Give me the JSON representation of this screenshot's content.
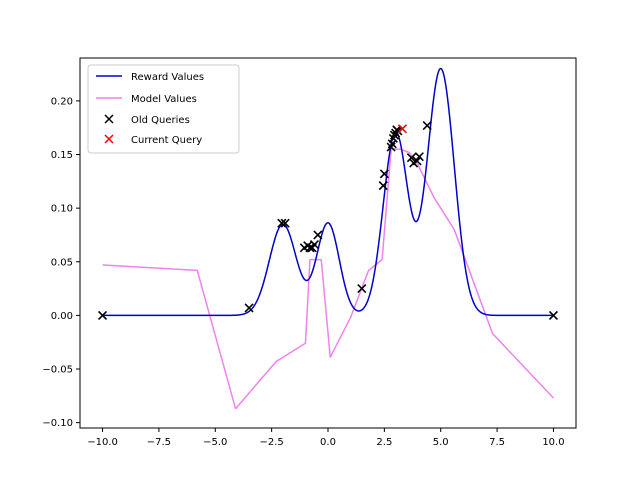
{
  "chart_data": {
    "type": "line",
    "title": "",
    "xlabel": "",
    "ylabel": "",
    "xlim": [
      -11.0,
      11.0
    ],
    "ylim": [
      -0.105,
      0.24
    ],
    "grid": false,
    "legend_placement": "top-left",
    "x_ticks": [
      -10.0,
      -7.5,
      -5.0,
      -2.5,
      0.0,
      2.5,
      5.0,
      7.5,
      10.0
    ],
    "x_tick_labels": [
      "−10.0",
      "−7.5",
      "−5.0",
      "−2.5",
      "0.0",
      "2.5",
      "5.0",
      "7.5",
      "10.0"
    ],
    "y_ticks": [
      -0.1,
      -0.05,
      0.0,
      0.05,
      0.1,
      0.15,
      0.2
    ],
    "y_tick_labels": [
      "−0.10",
      "−0.05",
      "0.00",
      "0.05",
      "0.10",
      "0.15",
      "0.20"
    ],
    "reward_components": [
      {
        "mu": -2.0,
        "amp": 0.085,
        "sigma": 0.6
      },
      {
        "mu": 0.0,
        "amp": 0.086,
        "sigma": 0.5
      },
      {
        "mu": 3.0,
        "amp": 0.17,
        "sigma": 0.55
      },
      {
        "mu": 5.0,
        "amp": 0.23,
        "sigma": 0.6
      }
    ],
    "series": [
      {
        "name": "Reward Values",
        "kind": "line",
        "color": "#0000cc",
        "x_range": [
          -10.0,
          10.0
        ]
      },
      {
        "name": "Model Values",
        "kind": "line",
        "color": "#ee82ee",
        "x": [
          -10.0,
          -5.8,
          -4.1,
          -2.3,
          -1.0,
          -0.8,
          -0.3,
          0.1,
          1.0,
          1.8,
          2.4,
          2.8,
          3.2,
          3.6,
          4.0,
          4.7,
          5.6,
          7.3,
          10.0
        ],
        "y": [
          0.047,
          0.042,
          -0.087,
          -0.043,
          -0.026,
          0.052,
          0.052,
          -0.039,
          -0.002,
          0.042,
          0.052,
          0.155,
          0.155,
          0.152,
          0.14,
          0.11,
          0.08,
          -0.017,
          -0.077
        ]
      },
      {
        "name": "Old Queries",
        "kind": "scatter",
        "color": "#000000",
        "marker": "x",
        "x": [
          -10.0,
          -3.5,
          -2.05,
          -1.9,
          -1.05,
          -0.9,
          -0.8,
          -0.7,
          -0.6,
          -0.45,
          1.5,
          2.45,
          2.5,
          2.8,
          2.85,
          2.9,
          2.95,
          3.0,
          3.05,
          3.1,
          3.7,
          3.8,
          3.95,
          4.05,
          4.4,
          10.0
        ],
        "y": [
          0.0,
          0.007,
          0.086,
          0.086,
          0.063,
          0.065,
          0.063,
          0.063,
          0.066,
          0.075,
          0.025,
          0.121,
          0.132,
          0.157,
          0.16,
          0.165,
          0.168,
          0.17,
          0.173,
          0.172,
          0.147,
          0.142,
          0.144,
          0.148,
          0.177,
          0.0
        ]
      },
      {
        "name": "Current Query",
        "kind": "scatter",
        "color": "#ff0000",
        "marker": "x",
        "x": [
          3.3
        ],
        "y": [
          0.174
        ]
      }
    ]
  }
}
